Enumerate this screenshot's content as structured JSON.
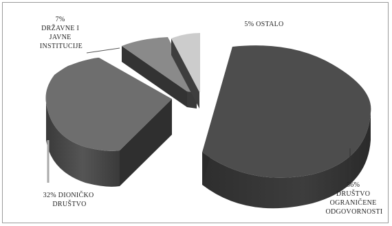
{
  "chart_data": {
    "type": "pie",
    "style": "3d-exploded",
    "slices": [
      {
        "percent": "56%",
        "lines": [
          "DRUŠTVO",
          "OGRANIČENE",
          "ODGOVORNOSTI"
        ],
        "value": 56,
        "color": "#4d4d4d"
      },
      {
        "percent": "5%",
        "lines": [
          "OSTALO"
        ],
        "value": 5,
        "color": "#c9c9c9"
      },
      {
        "percent": "7%",
        "lines": [
          "DRŽAVNE I",
          "JAVNE",
          "INSTITUCIJE"
        ],
        "value": 7,
        "color": "#8a8a8a"
      },
      {
        "percent": "32%",
        "lines": [
          "DIONIČKO",
          "DRUŠTVO"
        ],
        "value": 32,
        "color": "#6e6e6e"
      }
    ],
    "legend": "none"
  }
}
